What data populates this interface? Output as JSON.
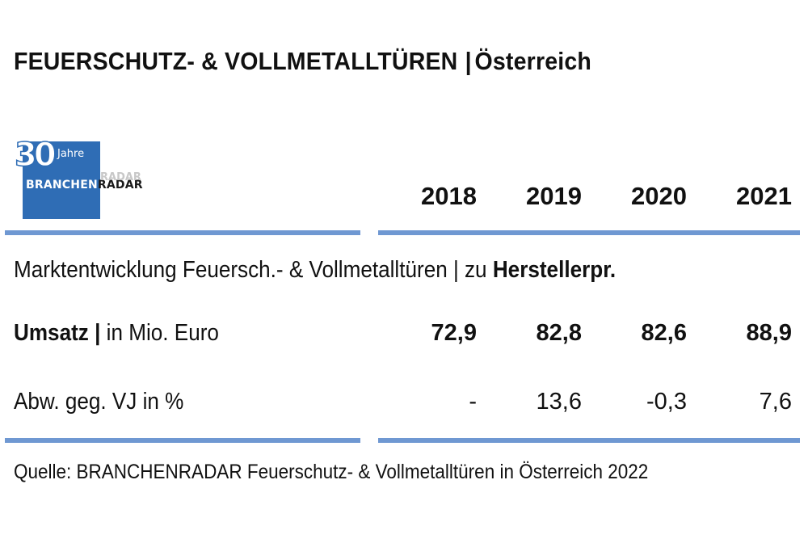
{
  "title": {
    "main": "FEUERSCHUTZ- & VOLLMETALLTÜREN",
    "separator": "|",
    "region": "Österreich"
  },
  "logo": {
    "number": "30",
    "jahre": "Jahre",
    "brand_part1": "BRANCHEN",
    "brand_part2": "RADAR",
    "ghost": "RADAR",
    "color": "#2f6db5"
  },
  "accent_color": "#6f98d2",
  "chart_data": {
    "type": "table",
    "years": [
      "2018",
      "2019",
      "2020",
      "2021"
    ],
    "section": {
      "text": "Marktentwicklung Feuersch.- & Vollmetalltüren | zu ",
      "bold": "Herstellerpr."
    },
    "rows": [
      {
        "label_bold": "Umsatz",
        "label_sep": "|",
        "label_rest": "in Mio. Euro",
        "values": [
          "72,9",
          "82,8",
          "82,6",
          "88,9"
        ],
        "bold": true
      },
      {
        "label_bold": "",
        "label_sep": "",
        "label_rest": "Abw. geg. VJ in %",
        "values": [
          "-",
          "13,6",
          "-0,3",
          "7,6"
        ],
        "bold": false
      }
    ],
    "source": "Quelle: BRANCHENRADAR Feuerschutz- & Vollmetalltüren  in Österreich 2022"
  }
}
